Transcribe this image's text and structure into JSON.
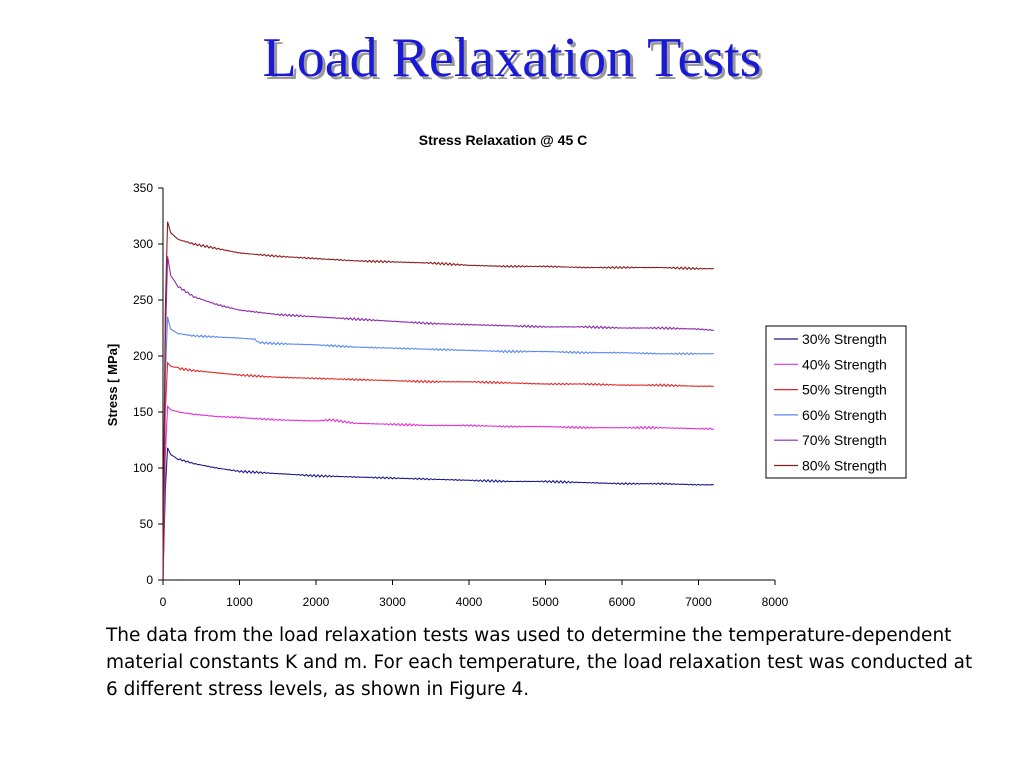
{
  "slide": {
    "title": "Load Relaxation Tests",
    "body": "The data from the load relaxation tests was used to determine the temperature-dependent material constants K and m. For each temperature, the load relaxation test was conducted at 6 different stress levels, as shown in Figure 4."
  },
  "chart_data": {
    "type": "line",
    "title": "Stress Relaxation @ 45 C",
    "xlabel": "",
    "ylabel": "Stress [ MPa]",
    "xlim": [
      0,
      8000
    ],
    "ylim": [
      0,
      350
    ],
    "x_ticks": [
      0,
      1000,
      2000,
      3000,
      4000,
      5000,
      6000,
      7000,
      8000
    ],
    "y_ticks": [
      0,
      50,
      100,
      150,
      200,
      250,
      300,
      350
    ],
    "grid": false,
    "legend": "right",
    "series": [
      {
        "name": "30% Strength",
        "color": "#1c1c8c",
        "x": [
          0,
          30,
          60,
          100,
          200,
          400,
          700,
          1000,
          1500,
          2000,
          2500,
          3000,
          3500,
          4000,
          4500,
          5000,
          5500,
          6000,
          6500,
          7000,
          7200
        ],
        "y": [
          0,
          80,
          118,
          112,
          108,
          104,
          100,
          97,
          95,
          93,
          92,
          91,
          90,
          89,
          88,
          88,
          87,
          86,
          86,
          85,
          85
        ]
      },
      {
        "name": "40% Strength",
        "color": "#e030d8",
        "x": [
          0,
          30,
          60,
          100,
          200,
          400,
          700,
          1000,
          1500,
          2000,
          2200,
          2500,
          3000,
          3500,
          4000,
          4500,
          5000,
          5500,
          6000,
          6500,
          7000,
          7200
        ],
        "y": [
          0,
          110,
          155,
          152,
          150,
          148,
          146,
          145,
          143,
          142,
          143,
          140,
          139,
          138,
          138,
          137,
          137,
          136,
          136,
          136,
          135,
          135
        ]
      },
      {
        "name": "50% Strength",
        "color": "#e02828",
        "x": [
          0,
          30,
          60,
          100,
          200,
          400,
          700,
          1000,
          1500,
          2000,
          2500,
          3000,
          3500,
          4000,
          4500,
          5000,
          5500,
          6000,
          6500,
          7000,
          7200
        ],
        "y": [
          0,
          150,
          194,
          191,
          189,
          187,
          185,
          183,
          181,
          180,
          179,
          178,
          177,
          177,
          176,
          175,
          175,
          174,
          174,
          173,
          173
        ]
      },
      {
        "name": "60% Strength",
        "color": "#5a88f0",
        "x": [
          0,
          30,
          60,
          100,
          200,
          400,
          700,
          1000,
          1200,
          1250,
          1500,
          2000,
          2500,
          3000,
          3500,
          4000,
          4500,
          5000,
          5500,
          6000,
          6500,
          7000,
          7200
        ],
        "y": [
          0,
          180,
          235,
          224,
          220,
          218,
          217,
          216,
          215,
          212,
          211,
          210,
          208,
          207,
          206,
          205,
          204,
          204,
          203,
          203,
          202,
          202,
          202
        ]
      },
      {
        "name": "70% Strength",
        "color": "#8a28b0",
        "x": [
          0,
          30,
          60,
          100,
          200,
          400,
          700,
          1000,
          1500,
          2000,
          2500,
          3000,
          3500,
          4000,
          4500,
          5000,
          5500,
          6000,
          6500,
          7000,
          7200
        ],
        "y": [
          0,
          210,
          289,
          272,
          262,
          253,
          246,
          241,
          237,
          235,
          233,
          231,
          229,
          228,
          227,
          226,
          226,
          225,
          225,
          224,
          223
        ]
      },
      {
        "name": "80% Strength",
        "color": "#8c1c1c",
        "x": [
          0,
          30,
          60,
          100,
          200,
          400,
          700,
          1000,
          1500,
          2000,
          2500,
          3000,
          3500,
          4000,
          4500,
          5000,
          5500,
          6000,
          6500,
          7000,
          7200
        ],
        "y": [
          0,
          240,
          320,
          310,
          304,
          300,
          296,
          292,
          289,
          287,
          285,
          284,
          283,
          281,
          280,
          280,
          279,
          279,
          279,
          278,
          278
        ]
      }
    ]
  }
}
